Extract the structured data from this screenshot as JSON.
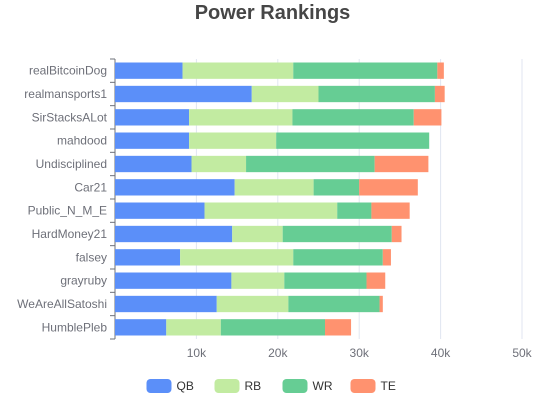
{
  "chart_data": {
    "type": "bar",
    "orientation": "horizontal",
    "stacked": true,
    "title": "Power Rankings",
    "categories": [
      "realBitcoinDog",
      "realmansports1",
      "SirStacksALot",
      "mahdood",
      "Undisciplined",
      "Car21",
      "Public_N_M_E",
      "HardMoney21",
      "falsey",
      "grayruby",
      "WeAreAllSatoshi",
      "HumblePleb"
    ],
    "series": [
      {
        "name": "QB",
        "color": "#5b8ff9",
        "values": [
          8300,
          16800,
          9100,
          9100,
          9400,
          14700,
          11000,
          14400,
          8000,
          14300,
          12500,
          6300
        ]
      },
      {
        "name": "RB",
        "color": "#c2eba1",
        "values": [
          13600,
          8200,
          12700,
          10700,
          6700,
          9700,
          16300,
          6200,
          13900,
          6500,
          8800,
          6700
        ]
      },
      {
        "name": "WR",
        "color": "#66cd94",
        "values": [
          17700,
          14300,
          14900,
          18800,
          15800,
          5600,
          4200,
          13400,
          11000,
          10100,
          11200,
          12800
        ]
      },
      {
        "name": "TE",
        "color": "#ff926f",
        "values": [
          800,
          1200,
          3400,
          0,
          6600,
          7200,
          4700,
          1200,
          1000,
          2300,
          400,
          3200
        ]
      }
    ],
    "xlim": [
      0,
      50000
    ],
    "xticks": [
      "10k",
      "20k",
      "30k",
      "40k",
      "50k"
    ],
    "xtick_values": [
      10000,
      20000,
      30000,
      40000,
      50000
    ],
    "grid": true,
    "legend": "bottom"
  }
}
